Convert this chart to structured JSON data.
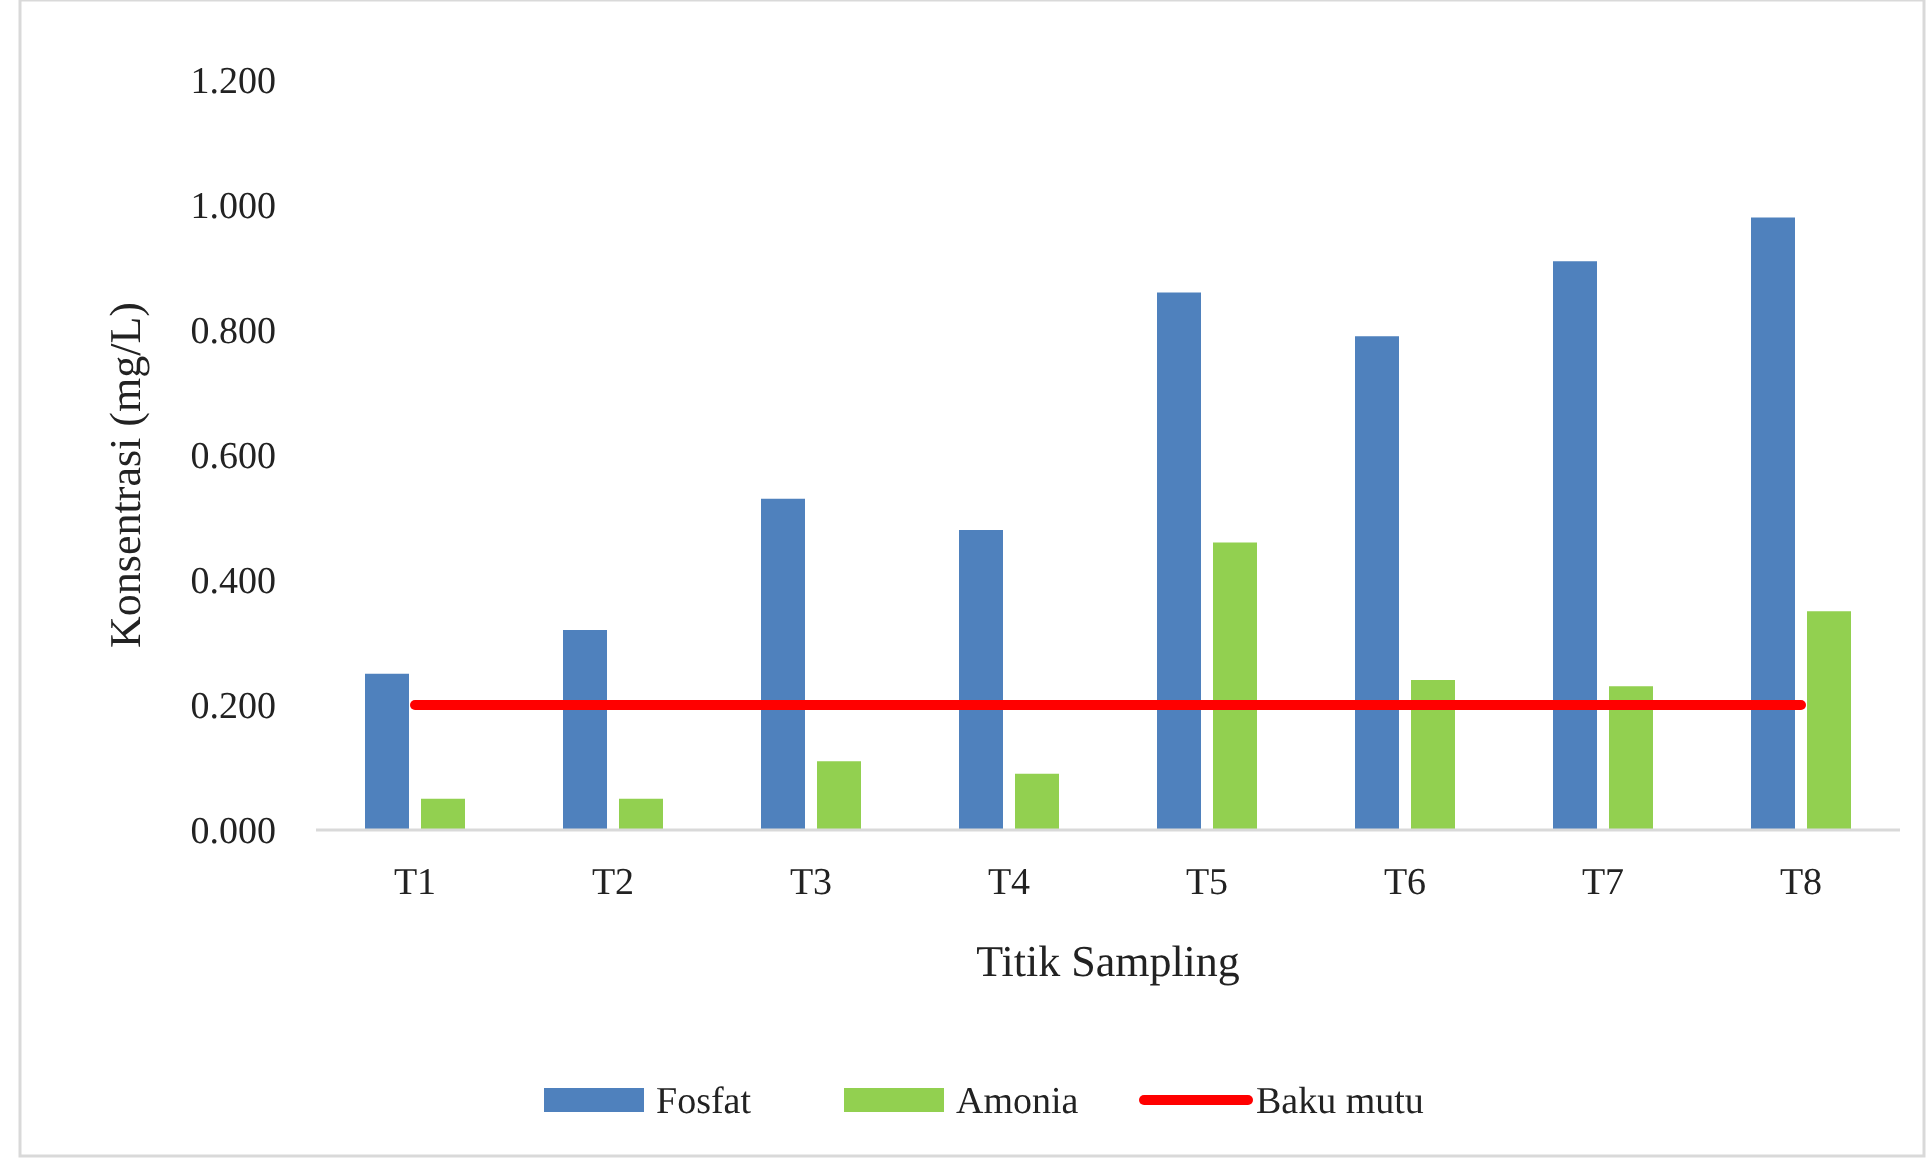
{
  "chart_data": {
    "type": "bar",
    "xlabel": "Titik Sampling",
    "ylabel": "Konsentrasi (mg/L)",
    "categories": [
      "T1",
      "T2",
      "T3",
      "T4",
      "T5",
      "T6",
      "T7",
      "T8"
    ],
    "series": [
      {
        "name": "Fosfat",
        "color": "#4f81bd",
        "values": [
          0.25,
          0.32,
          0.53,
          0.48,
          0.86,
          0.79,
          0.91,
          0.98
        ]
      },
      {
        "name": "Amonia",
        "color": "#92d050",
        "values": [
          0.05,
          0.05,
          0.11,
          0.09,
          0.46,
          0.24,
          0.23,
          0.35
        ]
      },
      {
        "name": "Baku mutu",
        "type": "line",
        "color": "#ff0000",
        "values": [
          0.2,
          0.2,
          0.2,
          0.2,
          0.2,
          0.2,
          0.2,
          0.2
        ]
      }
    ],
    "ylim": [
      0,
      1.2
    ],
    "yticks": [
      {
        "value": 0,
        "label": "0.000"
      },
      {
        "value": 0.2,
        "label": "0.200"
      },
      {
        "value": 0.4,
        "label": "0.400"
      },
      {
        "value": 0.6,
        "label": "0.600"
      },
      {
        "value": 0.8,
        "label": "0.800"
      },
      {
        "value": 1,
        "label": "1.000"
      },
      {
        "value": 1.2,
        "label": "1.200"
      }
    ],
    "grid": false,
    "legend": "bottom"
  }
}
